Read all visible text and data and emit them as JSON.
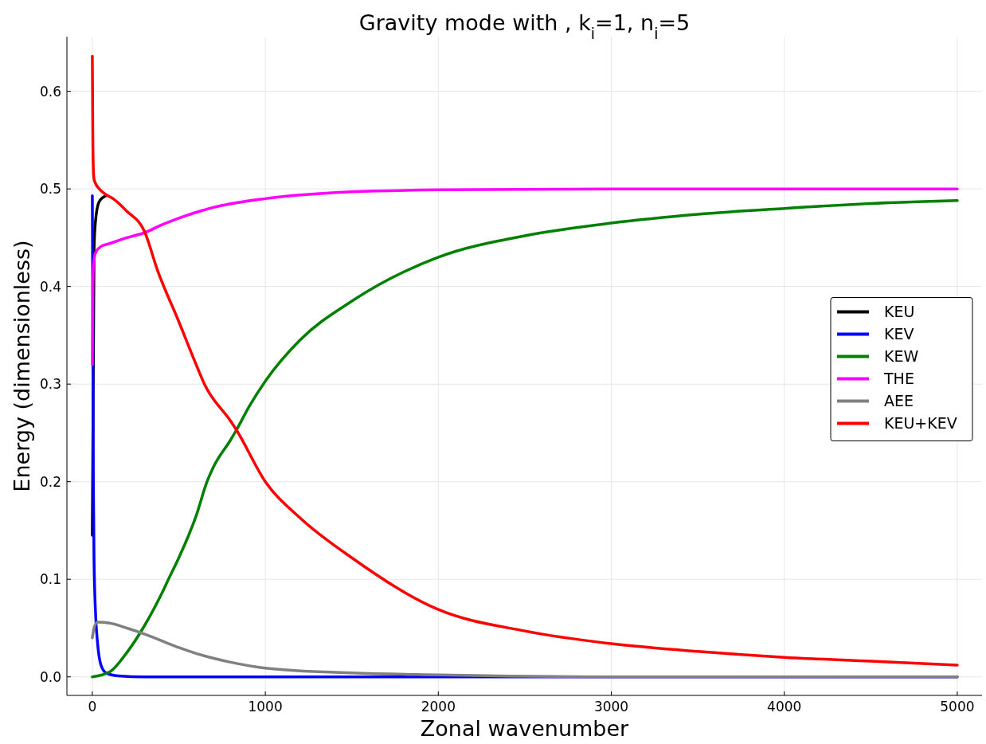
{
  "chart_data": {
    "type": "line",
    "title": "Gravity mode with , k$_{i}$=1, n$_{i}$=5",
    "xlabel": "Zonal wavenumber",
    "ylabel": "Energy (dimensionless)",
    "xlim": [
      -147,
      5143
    ],
    "ylim": [
      -0.019,
      0.656
    ],
    "xticks": [
      0,
      1000,
      2000,
      3000,
      4000,
      5000
    ],
    "yticks": [
      {
        "value": 0,
        "label": "0.0"
      },
      {
        "value": 0.1,
        "label": "0.1"
      },
      {
        "value": 0.2,
        "label": "0.2"
      },
      {
        "value": 0.3,
        "label": "0.3"
      },
      {
        "value": 0.4,
        "label": "0.4"
      },
      {
        "value": 0.5,
        "label": "0.5"
      },
      {
        "value": 0.6,
        "label": "0.6"
      }
    ],
    "grid": true,
    "legend": "right",
    "marker": "none",
    "line_style": "solid",
    "series": [
      {
        "name": "KEU",
        "color": "#000000",
        "x": [
          0,
          10,
          20,
          40,
          80
        ],
        "values": [
          0.145,
          0.44,
          0.47,
          0.487,
          0.493
        ]
      },
      {
        "name": "KEV",
        "color": "#0000ff",
        "x": [
          0,
          6,
          10,
          20,
          30,
          50,
          80,
          150,
          300,
          1000,
          5000
        ],
        "values": [
          0.493,
          0.2,
          0.12,
          0.06,
          0.035,
          0.012,
          0.004,
          0.001,
          0,
          0,
          0
        ]
      },
      {
        "name": "KEW",
        "color": "#008000",
        "x": [
          0,
          100,
          200,
          300,
          400,
          440,
          500,
          600,
          663,
          700,
          800,
          833,
          900,
          1000,
          1200,
          1500,
          2000,
          2500,
          3000,
          3500,
          4000,
          4500,
          5000
        ],
        "values": [
          0,
          0.005,
          0.025,
          0.052,
          0.085,
          0.1,
          0.122,
          0.165,
          0.2,
          0.215,
          0.243,
          0.253,
          0.275,
          0.303,
          0.345,
          0.385,
          0.43,
          0.452,
          0.465,
          0.474,
          0.48,
          0.485,
          0.488
        ]
      },
      {
        "name": "THE",
        "color": "#ff00ff",
        "x": [
          0,
          3,
          8,
          20,
          50,
          100,
          200,
          300,
          400,
          500,
          700,
          1000,
          1500,
          2000,
          3000,
          5000
        ],
        "values": [
          0.32,
          0.4,
          0.425,
          0.435,
          0.441,
          0.444,
          0.45,
          0.455,
          0.463,
          0.47,
          0.481,
          0.49,
          0.497,
          0.499,
          0.5,
          0.5
        ]
      },
      {
        "name": "AEE",
        "color": "#808080",
        "x": [
          0,
          10,
          30,
          100,
          200,
          300,
          400,
          500,
          600,
          800,
          1000,
          1500,
          2000,
          3000,
          5000
        ],
        "values": [
          0.04,
          0.05,
          0.056,
          0.055,
          0.05,
          0.044,
          0.037,
          0.03,
          0.024,
          0.015,
          0.009,
          0.004,
          0.002,
          0,
          0
        ]
      },
      {
        "name": "KEU+KEV",
        "color": "#ff0000",
        "x": [
          0,
          3,
          6,
          10,
          20,
          40,
          80,
          120,
          200,
          300,
          378,
          500,
          600,
          648,
          800,
          833,
          1000,
          1200,
          1500,
          2000,
          2500,
          3000,
          3500,
          4000,
          4500,
          5000
        ],
        "values": [
          0.636,
          0.55,
          0.52,
          0.51,
          0.505,
          0.5,
          0.494,
          0.49,
          0.477,
          0.457,
          0.416,
          0.364,
          0.32,
          0.3,
          0.262,
          0.253,
          0.2,
          0.163,
          0.122,
          0.069,
          0.047,
          0.034,
          0.026,
          0.02,
          0.016,
          0.012
        ]
      }
    ]
  }
}
